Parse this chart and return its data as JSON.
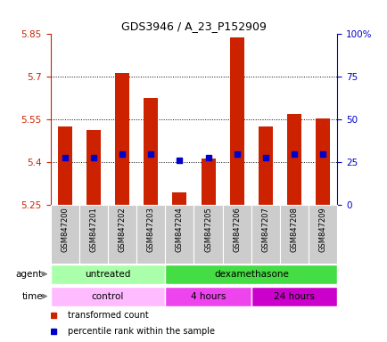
{
  "title": "GDS3946 / A_23_P152909",
  "samples": [
    "GSM847200",
    "GSM847201",
    "GSM847202",
    "GSM847203",
    "GSM847204",
    "GSM847205",
    "GSM847206",
    "GSM847207",
    "GSM847208",
    "GSM847209"
  ],
  "transformed_counts": [
    5.525,
    5.515,
    5.715,
    5.625,
    5.295,
    5.415,
    5.84,
    5.525,
    5.57,
    5.555
  ],
  "percentile_ranks": [
    28,
    28,
    30,
    30,
    26,
    28,
    30,
    28,
    30,
    30
  ],
  "ylim_left": [
    5.25,
    5.85
  ],
  "ylim_right": [
    0,
    100
  ],
  "yticks_left": [
    5.25,
    5.4,
    5.55,
    5.7,
    5.85
  ],
  "yticks_right": [
    0,
    25,
    50,
    75,
    100
  ],
  "bar_color": "#cc2200",
  "dot_color": "#0000cc",
  "agent_untreated_color": "#aaffaa",
  "agent_dexa_color": "#44dd44",
  "time_control_color": "#ffbbff",
  "time_4h_color": "#ee44ee",
  "time_24h_color": "#cc00cc",
  "baseline": 5.25,
  "bar_width": 0.5
}
